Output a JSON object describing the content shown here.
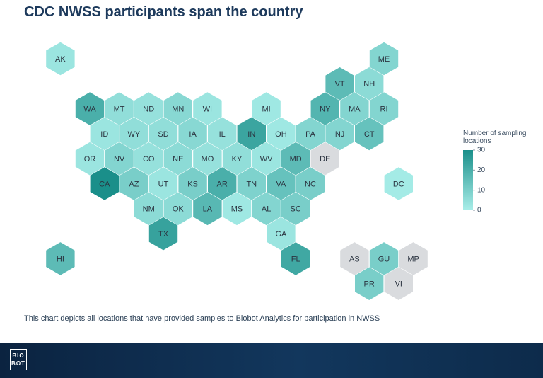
{
  "chart_data": {
    "type": "hexmap",
    "title": "CDC NWSS participants span the country",
    "note": "This chart depicts all locations that have provided samples to Biobot Analytics for participation in NWSS",
    "legend_title": "Number of sampling locations",
    "categories": [
      "AK",
      "ME",
      "VT",
      "NH",
      "WA",
      "MT",
      "ND",
      "MN",
      "WI",
      "MI",
      "NY",
      "MA",
      "RI",
      "ID",
      "WY",
      "SD",
      "IA",
      "IL",
      "IN",
      "OH",
      "PA",
      "NJ",
      "CT",
      "OR",
      "NV",
      "CO",
      "NE",
      "MO",
      "KY",
      "WV",
      "MD",
      "DE",
      "CA",
      "AZ",
      "UT",
      "KS",
      "AR",
      "TN",
      "VA",
      "NC",
      "DC",
      "NM",
      "OK",
      "LA",
      "MS",
      "AL",
      "SC",
      "TX",
      "GA",
      "HI",
      "FL",
      "AS",
      "GU",
      "MP",
      "PR",
      "VI"
    ],
    "values": [
      3,
      8,
      16,
      6,
      20,
      5,
      4,
      7,
      3,
      2,
      18,
      8,
      8,
      3,
      5,
      5,
      7,
      4,
      23,
      2,
      8,
      8,
      14,
      3,
      8,
      4,
      6,
      4,
      5,
      3,
      16,
      null,
      30,
      10,
      3,
      10,
      20,
      9,
      14,
      10,
      1,
      6,
      6,
      17,
      2,
      8,
      10,
      24,
      3,
      16,
      22,
      null,
      10,
      null,
      10,
      null
    ],
    "clim": [
      0,
      30
    ],
    "cticks": [
      0,
      10,
      20,
      30
    ],
    "colorscale": [
      "#a9eee9",
      "#1a8f8a"
    ],
    "null_color": "#d9dbde"
  },
  "footer": {
    "logo": [
      "BIO",
      "BOT"
    ]
  }
}
